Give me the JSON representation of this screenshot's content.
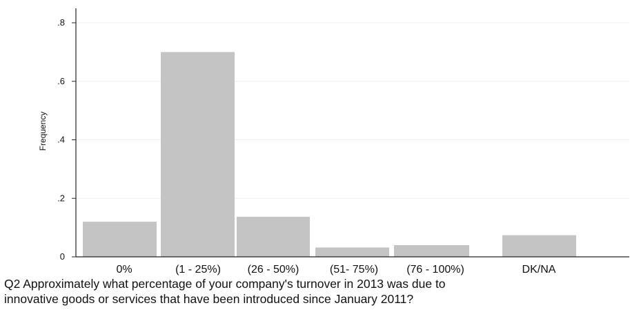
{
  "chart_data": {
    "type": "bar",
    "categories": [
      "0%",
      "(1 - 25%)",
      "(26 - 50%)",
      "(51- 75%)",
      "(76 - 100%)",
      "DK/NA"
    ],
    "values": [
      0.12,
      0.7,
      0.137,
      0.032,
      0.04,
      0.074
    ],
    "ylabel": "Frequency",
    "ylim": [
      0,
      0.8
    ],
    "yticks": [
      {
        "value": 0,
        "label": "0"
      },
      {
        "value": 0.2,
        "label": ".2"
      },
      {
        "value": 0.4,
        "label": ".4"
      },
      {
        "value": 0.6,
        "label": ".6"
      },
      {
        "value": 0.8,
        "label": ".8"
      }
    ],
    "grid": true,
    "bar_color": "#c4c4c4",
    "grid_color": "#eeeeee",
    "caption_lines": [
      "Q2 Approximately what percentage of your company's turnover in 2013 was due to",
      "innovative goods or services that have been introduced since January 2011?"
    ]
  }
}
